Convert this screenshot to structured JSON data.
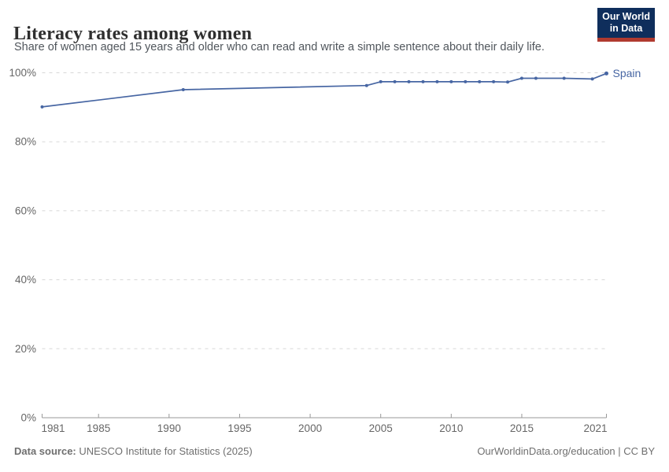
{
  "header": {
    "title": "Literacy rates among women",
    "subtitle": "Share of women aged 15 years and older who can read and write a simple sentence about their daily life.",
    "logo": {
      "line1": "Our World",
      "line2": "in Data",
      "bg_color": "#0f2e5c",
      "bar_color": "#b03a2f"
    }
  },
  "chart_data": {
    "type": "line",
    "title": "Literacy rates among women",
    "xlabel": "",
    "ylabel": "",
    "xlim": [
      1981,
      2021
    ],
    "ylim": [
      0,
      100
    ],
    "x_ticks": [
      1981,
      1985,
      1990,
      1995,
      2000,
      2005,
      2010,
      2015,
      2021
    ],
    "y_ticks": [
      0,
      20,
      40,
      60,
      80,
      100
    ],
    "y_tick_suffix": "%",
    "grid": "horizontal-dashed",
    "legend_position": "end-of-line-label",
    "series": [
      {
        "name": "Spain",
        "color": "#4766a3",
        "data": [
          [
            1981,
            90.1
          ],
          [
            1991,
            95.1
          ],
          [
            2004,
            96.3
          ],
          [
            2005,
            97.4
          ],
          [
            2006,
            97.4
          ],
          [
            2007,
            97.4
          ],
          [
            2008,
            97.4
          ],
          [
            2009,
            97.4
          ],
          [
            2010,
            97.4
          ],
          [
            2011,
            97.4
          ],
          [
            2012,
            97.4
          ],
          [
            2013,
            97.4
          ],
          [
            2014,
            97.3
          ],
          [
            2015,
            98.4
          ],
          [
            2016,
            98.4
          ],
          [
            2018,
            98.4
          ],
          [
            2020,
            98.2
          ],
          [
            2021,
            99.8
          ]
        ]
      }
    ]
  },
  "footer": {
    "source_label": "Data source:",
    "source_text": " UNESCO Institute for Statistics (2025)",
    "credit": "OurWorldinData.org/education | CC BY"
  }
}
